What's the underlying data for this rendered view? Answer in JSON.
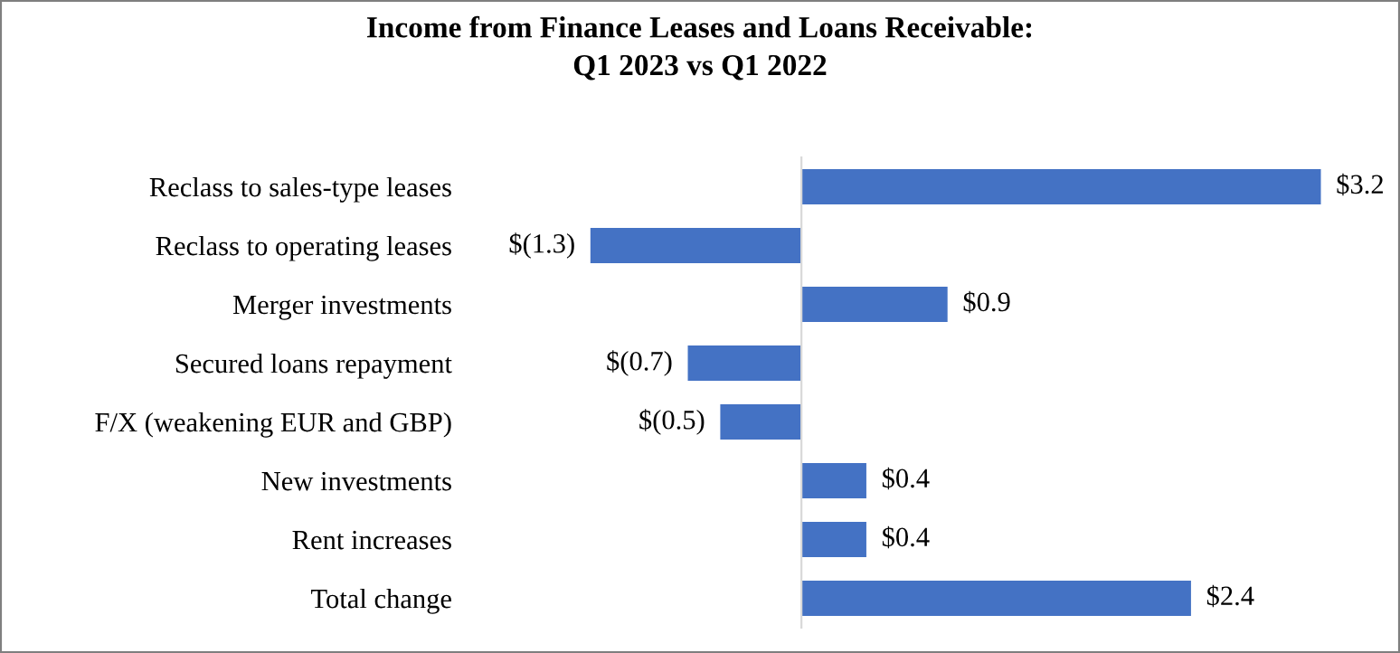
{
  "chart_data": {
    "type": "bar",
    "orientation": "horizontal",
    "title": "Income from Finance Leases and Loans Receivable:\nQ1 2023 vs Q1 2022",
    "categories": [
      "Reclass to sales-type leases",
      "Reclass to operating leases",
      "Merger investments",
      "Secured loans repayment",
      "F/X (weakening EUR and GBP)",
      "New investments",
      "Rent increases",
      "Total change"
    ],
    "values": [
      3.2,
      -1.3,
      0.9,
      -0.7,
      -0.5,
      0.4,
      0.4,
      2.4
    ],
    "value_labels": [
      "$3.2",
      "$(1.3)",
      "$0.9",
      "$(0.7)",
      "$(0.5)",
      "$0.4",
      "$0.4",
      "$2.4"
    ],
    "color": "#4472c4"
  }
}
